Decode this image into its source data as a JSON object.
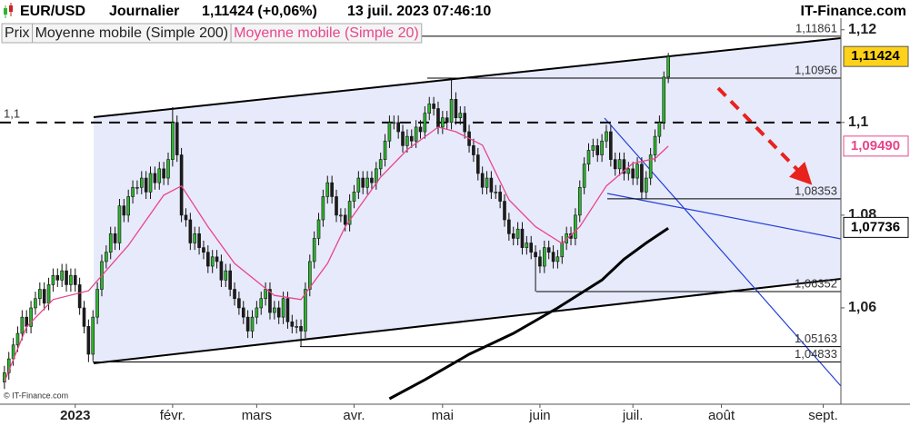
{
  "chart_data": {
    "type": "candlestick",
    "title": {
      "symbol": "EUR/USD",
      "period": "Journalier",
      "quote": "1,11424 (+0,06%)",
      "datetime": "13 juil. 2023 07:46:10",
      "site": "IT-Finance.com"
    },
    "copyright": "© IT-Finance.com",
    "price": {
      "name": "Prix",
      "up_color": "#2fb52f",
      "down_color": "#1c1c1c",
      "ohlc": [
        [
          1.044,
          1.0475,
          1.0425,
          1.046
        ],
        [
          1.046,
          1.0505,
          1.0445,
          1.049
        ],
        [
          1.049,
          1.0535,
          1.0475,
          1.052
        ],
        [
          1.052,
          1.056,
          1.0505,
          1.0545
        ],
        [
          1.0545,
          1.0595,
          1.053,
          1.058
        ],
        [
          1.058,
          1.0595,
          1.0545,
          1.056
        ],
        [
          1.056,
          1.0615,
          1.0545,
          1.06
        ],
        [
          1.06,
          1.0635,
          1.0585,
          1.062
        ],
        [
          1.062,
          1.0655,
          1.0605,
          1.064
        ],
        [
          1.064,
          1.0655,
          1.0595,
          1.061
        ],
        [
          1.061,
          1.0665,
          1.0595,
          1.065
        ],
        [
          1.065,
          1.0685,
          1.0635,
          1.067
        ],
        [
          1.067,
          1.0685,
          1.0645,
          1.066
        ],
        [
          1.066,
          1.0695,
          1.0645,
          1.068
        ],
        [
          1.068,
          1.0695,
          1.0635,
          1.065
        ],
        [
          1.065,
          1.0685,
          1.0635,
          1.067
        ],
        [
          1.067,
          1.0685,
          1.0635,
          1.065
        ],
        [
          1.065,
          1.0665,
          1.0585,
          1.06
        ],
        [
          1.06,
          1.0615,
          1.0545,
          1.056
        ],
        [
          1.056,
          1.0575,
          1.0483,
          1.05
        ],
        [
          1.05,
          1.0595,
          1.0485,
          1.058
        ],
        [
          1.058,
          1.0655,
          1.0565,
          1.064
        ],
        [
          1.064,
          1.0715,
          1.0625,
          1.07
        ],
        [
          1.07,
          1.0735,
          1.0685,
          1.072
        ],
        [
          1.072,
          1.0775,
          1.0705,
          1.076
        ],
        [
          1.076,
          1.0775,
          1.0725,
          1.074
        ],
        [
          1.074,
          1.0835,
          1.0725,
          1.082
        ],
        [
          1.082,
          1.0835,
          1.0785,
          1.08
        ],
        [
          1.08,
          1.0855,
          1.0785,
          1.084
        ],
        [
          1.084,
          1.0875,
          1.0825,
          1.086
        ],
        [
          1.086,
          1.0875,
          1.0845,
          1.086
        ],
        [
          1.086,
          1.0895,
          1.0845,
          1.088
        ],
        [
          1.088,
          1.0895,
          1.0835,
          1.085
        ],
        [
          1.085,
          1.0905,
          1.0835,
          1.089
        ],
        [
          1.089,
          1.0905,
          1.0855,
          1.087
        ],
        [
          1.087,
          1.0915,
          1.0855,
          1.09
        ],
        [
          1.09,
          1.0915,
          1.0865,
          1.088
        ],
        [
          1.088,
          1.0935,
          1.0865,
          1.092
        ],
        [
          1.092,
          1.1033,
          1.0905,
          1.1
        ],
        [
          1.1,
          1.1015,
          1.0915,
          1.093
        ],
        [
          1.093,
          1.0945,
          1.0785,
          1.08
        ],
        [
          1.08,
          1.0815,
          1.0775,
          1.079
        ],
        [
          1.079,
          1.0805,
          1.0725,
          1.074
        ],
        [
          1.074,
          1.0775,
          1.0725,
          1.076
        ],
        [
          1.076,
          1.0775,
          1.0715,
          1.073
        ],
        [
          1.073,
          1.0745,
          1.0705,
          1.072
        ],
        [
          1.072,
          1.0735,
          1.0675,
          1.069
        ],
        [
          1.069,
          1.0725,
          1.0675,
          1.071
        ],
        [
          1.071,
          1.0725,
          1.0685,
          1.07
        ],
        [
          1.07,
          1.0715,
          1.0645,
          1.066
        ],
        [
          1.066,
          1.0695,
          1.0645,
          1.068
        ],
        [
          1.068,
          1.0695,
          1.0625,
          1.064
        ],
        [
          1.064,
          1.0655,
          1.0605,
          1.062
        ],
        [
          1.062,
          1.0635,
          1.0585,
          1.06
        ],
        [
          1.06,
          1.0615,
          1.0565,
          1.058
        ],
        [
          1.058,
          1.0595,
          1.0535,
          1.055
        ],
        [
          1.055,
          1.0595,
          1.0535,
          1.058
        ],
        [
          1.058,
          1.0615,
          1.0565,
          1.06
        ],
        [
          1.06,
          1.0635,
          1.0585,
          1.062
        ],
        [
          1.062,
          1.0655,
          1.0605,
          1.064
        ],
        [
          1.064,
          1.0655,
          1.0575,
          1.059
        ],
        [
          1.059,
          1.0615,
          1.0575,
          1.06
        ],
        [
          1.06,
          1.0615,
          1.0565,
          1.058
        ],
        [
          1.058,
          1.0635,
          1.0565,
          1.062
        ],
        [
          1.062,
          1.0635,
          1.0555,
          1.057
        ],
        [
          1.057,
          1.0585,
          1.0545,
          1.056
        ],
        [
          1.056,
          1.0575,
          1.0545,
          1.056
        ],
        [
          1.056,
          1.0575,
          1.0516,
          1.055
        ],
        [
          1.055,
          1.0655,
          1.0535,
          1.064
        ],
        [
          1.064,
          1.0715,
          1.0625,
          1.07
        ],
        [
          1.07,
          1.0765,
          1.0685,
          1.075
        ],
        [
          1.075,
          1.0805,
          1.0735,
          1.079
        ],
        [
          1.079,
          1.0855,
          1.0775,
          1.084
        ],
        [
          1.084,
          1.0885,
          1.0825,
          1.087
        ],
        [
          1.087,
          1.0885,
          1.0825,
          1.084
        ],
        [
          1.084,
          1.0855,
          1.0785,
          1.08
        ],
        [
          1.08,
          1.0815,
          1.0785,
          1.08
        ],
        [
          1.08,
          1.0815,
          1.0765,
          1.078
        ],
        [
          1.078,
          1.0845,
          1.0765,
          1.083
        ],
        [
          1.083,
          1.0865,
          1.0815,
          1.085
        ],
        [
          1.085,
          1.0895,
          1.0835,
          1.088
        ],
        [
          1.088,
          1.0895,
          1.0845,
          1.086
        ],
        [
          1.086,
          1.0895,
          1.0845,
          1.088
        ],
        [
          1.088,
          1.0895,
          1.0855,
          1.087
        ],
        [
          1.087,
          1.0915,
          1.0855,
          1.09
        ],
        [
          1.09,
          1.0935,
          1.0885,
          1.092
        ],
        [
          1.092,
          1.0975,
          1.0905,
          1.096
        ],
        [
          1.096,
          1.1015,
          1.0945,
          1.1
        ],
        [
          1.1,
          1.1015,
          1.0985,
          1.1
        ],
        [
          1.1,
          1.1015,
          1.0965,
          1.098
        ],
        [
          1.098,
          1.0995,
          1.0935,
          1.095
        ],
        [
          1.095,
          1.0985,
          1.0935,
          1.097
        ],
        [
          1.097,
          1.0985,
          1.0945,
          1.096
        ],
        [
          1.096,
          1.1005,
          1.0945,
          1.099
        ],
        [
          1.099,
          1.1005,
          1.0965,
          1.098
        ],
        [
          1.098,
          1.1035,
          1.0965,
          1.102
        ],
        [
          1.102,
          1.1055,
          1.1005,
          1.104
        ],
        [
          1.104,
          1.1055,
          1.1015,
          1.103
        ],
        [
          1.103,
          1.1045,
          1.0975,
          1.099
        ],
        [
          1.099,
          1.1025,
          1.0975,
          1.101
        ],
        [
          1.101,
          1.1025,
          1.0985,
          1.1
        ],
        [
          1.1,
          1.1096,
          1.0985,
          1.105
        ],
        [
          1.105,
          1.1065,
          1.0995,
          1.101
        ],
        [
          1.101,
          1.1035,
          1.0995,
          1.102
        ],
        [
          1.102,
          1.1035,
          1.0965,
          1.098
        ],
        [
          1.098,
          1.0995,
          1.0935,
          1.095
        ],
        [
          1.095,
          1.0965,
          1.0915,
          1.093
        ],
        [
          1.093,
          1.0945,
          1.0875,
          1.089
        ],
        [
          1.089,
          1.0905,
          1.0845,
          1.086
        ],
        [
          1.086,
          1.0895,
          1.0845,
          1.088
        ],
        [
          1.088,
          1.0895,
          1.0835,
          1.085
        ],
        [
          1.085,
          1.0865,
          1.0835,
          1.085
        ],
        [
          1.085,
          1.0865,
          1.0815,
          1.083
        ],
        [
          1.083,
          1.0845,
          1.0775,
          1.079
        ],
        [
          1.079,
          1.0805,
          1.0745,
          1.076
        ],
        [
          1.076,
          1.0775,
          1.0735,
          1.075
        ],
        [
          1.075,
          1.0785,
          1.0735,
          1.077
        ],
        [
          1.077,
          1.0785,
          1.0715,
          1.073
        ],
        [
          1.073,
          1.0755,
          1.0715,
          1.074
        ],
        [
          1.074,
          1.0755,
          1.0705,
          1.072
        ],
        [
          1.072,
          1.0735,
          1.0635,
          1.071
        ],
        [
          1.071,
          1.0725,
          1.0675,
          1.069
        ],
        [
          1.069,
          1.0745,
          1.0675,
          1.073
        ],
        [
          1.073,
          1.0745,
          1.0705,
          1.072
        ],
        [
          1.072,
          1.0735,
          1.0685,
          1.07
        ],
        [
          1.07,
          1.0725,
          1.0685,
          1.071
        ],
        [
          1.071,
          1.0755,
          1.0695,
          1.074
        ],
        [
          1.074,
          1.0775,
          1.0725,
          1.076
        ],
        [
          1.076,
          1.0775,
          1.0735,
          1.075
        ],
        [
          1.075,
          1.0815,
          1.0735,
          1.08
        ],
        [
          1.08,
          1.0875,
          1.0785,
          1.086
        ],
        [
          1.086,
          1.0925,
          1.0845,
          1.091
        ],
        [
          1.091,
          1.0955,
          1.0895,
          1.094
        ],
        [
          1.094,
          1.0965,
          1.0925,
          1.095
        ],
        [
          1.095,
          1.0965,
          1.0915,
          1.093
        ],
        [
          1.093,
          1.0975,
          1.0915,
          1.096
        ],
        [
          1.096,
          1.0995,
          1.0945,
          1.098
        ],
        [
          1.098,
          1.0995,
          1.0905,
          1.092
        ],
        [
          1.092,
          1.0935,
          1.0885,
          1.09
        ],
        [
          1.09,
          1.0935,
          1.0885,
          1.092
        ],
        [
          1.092,
          1.0935,
          1.0875,
          1.089
        ],
        [
          1.089,
          1.0915,
          1.0875,
          1.09
        ],
        [
          1.09,
          1.0915,
          1.0865,
          1.088
        ],
        [
          1.088,
          1.0925,
          1.0865,
          1.091
        ],
        [
          1.091,
          1.0925,
          1.0835,
          1.085
        ],
        [
          1.085,
          1.0895,
          1.0835,
          1.088
        ],
        [
          1.088,
          1.0945,
          1.0865,
          1.093
        ],
        [
          1.093,
          1.0985,
          1.0915,
          1.097
        ],
        [
          1.097,
          1.1015,
          1.0955,
          1.1
        ],
        [
          1.1,
          1.111,
          1.0985,
          1.1098
        ],
        [
          1.1098,
          1.115,
          1.1085,
          1.11424
        ]
      ]
    },
    "sma": [
      {
        "name": "Moyenne mobile (Simple 200)",
        "color": "#000000",
        "x": [
          87,
          95,
          105,
          115,
          125,
          135,
          140,
          145,
          150
        ],
        "values": [
          1.0404,
          1.0445,
          1.05,
          1.0545,
          1.06,
          1.066,
          1.0705,
          1.074,
          1.0772
        ]
      },
      {
        "name": "Moyenne mobile (Simple 20)",
        "color": "#e8458b",
        "x": [
          0,
          5,
          11,
          19,
          28,
          36,
          40,
          46,
          52,
          61,
          67,
          73,
          77,
          85,
          91,
          98,
          102,
          108,
          114,
          120,
          126,
          130,
          136,
          142,
          147,
          150
        ],
        "values": [
          1.0441,
          1.0559,
          1.0618,
          1.0637,
          1.0735,
          1.0843,
          1.0863,
          1.0775,
          1.0696,
          1.0627,
          1.0618,
          1.0696,
          1.0775,
          1.0882,
          1.0941,
          1.099,
          1.098,
          1.0951,
          1.0833,
          1.0775,
          1.0739,
          1.0775,
          1.0863,
          1.0912,
          1.0922,
          1.0949
        ]
      }
    ],
    "xlim": [
      -1,
      189
    ],
    "xticks": [
      {
        "value": 16,
        "label": "2023"
      },
      {
        "value": 38,
        "label": "févr."
      },
      {
        "value": 57,
        "label": "mars"
      },
      {
        "value": 79,
        "label": "avr."
      },
      {
        "value": 99,
        "label": "mai"
      },
      {
        "value": 121,
        "label": "juin"
      },
      {
        "value": 142,
        "label": "juil."
      },
      {
        "value": 162,
        "label": "août"
      },
      {
        "value": 185,
        "label": "sept."
      }
    ],
    "ylim": [
      1.0402,
      1.1225
    ],
    "yticks": [
      {
        "value": 1.12,
        "label": "1,12"
      },
      {
        "value": 1.1,
        "label": "1,1"
      },
      {
        "value": 1.08,
        "label": "1,08"
      },
      {
        "value": 1.06,
        "label": "1,06"
      }
    ],
    "grid": false,
    "ref_line": {
      "value": 1.1,
      "label": "1,1"
    },
    "levels": [
      {
        "value": 1.11861,
        "label": "1,11861"
      },
      {
        "value": 1.10956,
        "label": "1,10956"
      },
      {
        "value": 1.08353,
        "label": "1,08353"
      },
      {
        "value": 1.06352,
        "label": "1,06352"
      },
      {
        "value": 1.05163,
        "label": "1,05163"
      },
      {
        "value": 1.04833,
        "label": "1,04833"
      }
    ],
    "price_tags": [
      {
        "value": 1.11424,
        "label": "1,11424",
        "color": "#ffd21a"
      },
      {
        "value": 1.0949,
        "label": "1,09490",
        "color": "#e8458b"
      },
      {
        "value": 1.07736,
        "label": "1,07736",
        "color": "#000000"
      }
    ]
  }
}
